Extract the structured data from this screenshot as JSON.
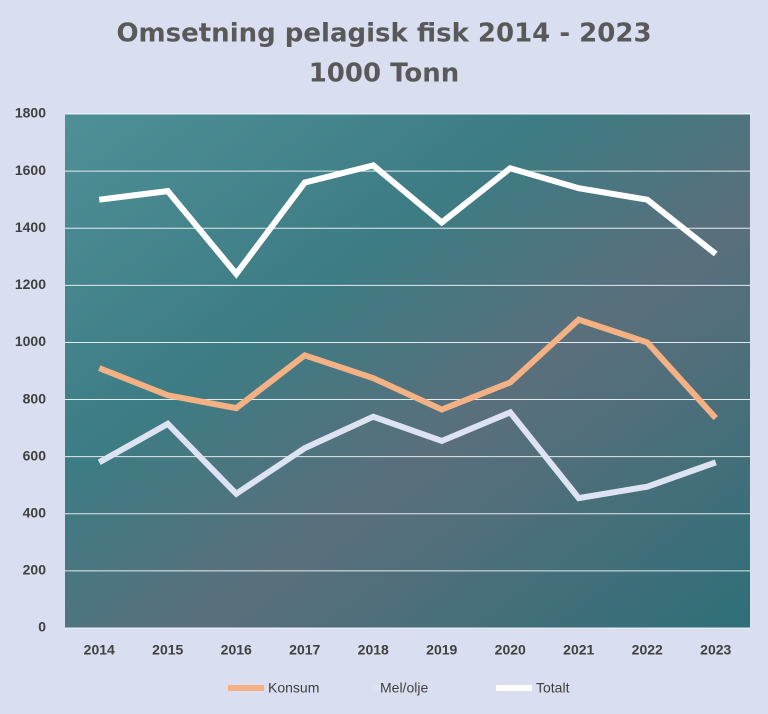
{
  "chart_data": {
    "type": "line",
    "title": "Omsetning pelagisk fisk 2014 - 2023",
    "subtitle": "1000 Tonn",
    "categories": [
      "2014",
      "2015",
      "2016",
      "2017",
      "2018",
      "2019",
      "2020",
      "2021",
      "2022",
      "2023"
    ],
    "series": [
      {
        "name": "Konsum",
        "color": "#f4b183",
        "values": [
          910,
          815,
          770,
          955,
          875,
          765,
          860,
          1080,
          1000,
          735
        ]
      },
      {
        "name": "Mel/olje",
        "color": "#dde3f2",
        "values": [
          580,
          715,
          470,
          630,
          740,
          655,
          755,
          455,
          495,
          580
        ]
      },
      {
        "name": "Totalt",
        "color": "#ffffff",
        "values": [
          1500,
          1530,
          1240,
          1560,
          1620,
          1420,
          1610,
          1540,
          1500,
          1310
        ]
      }
    ],
    "ylim": [
      0,
      1800
    ],
    "yticks": [
      0,
      200,
      400,
      600,
      800,
      1000,
      1200,
      1400,
      1600,
      1800
    ],
    "grid": true,
    "legend": "bottom"
  }
}
